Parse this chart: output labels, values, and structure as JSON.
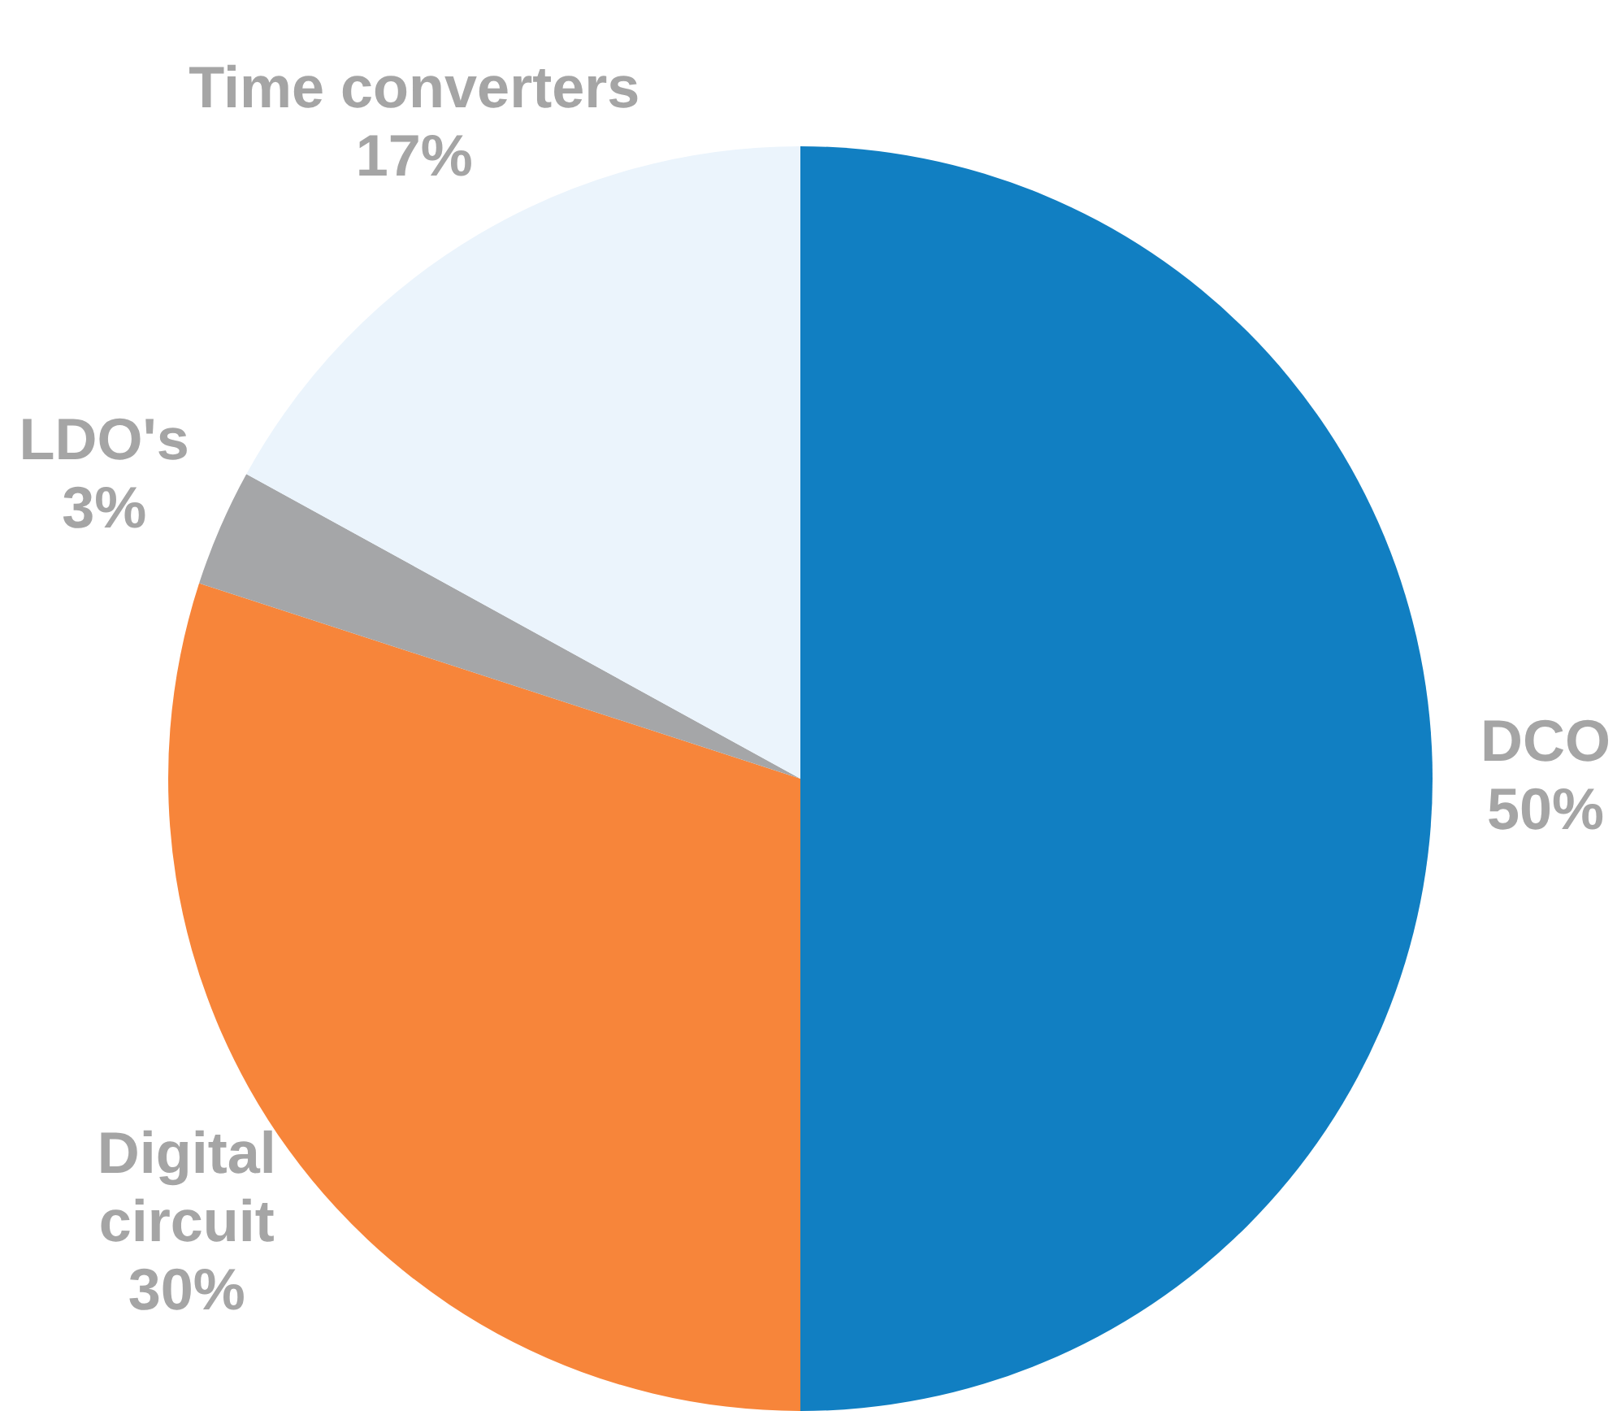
{
  "chart_data": {
    "type": "pie",
    "categories": [
      "DCO",
      "Digital circuit",
      "LDO's",
      "Time converters"
    ],
    "values": [
      50,
      30,
      3,
      17
    ],
    "colors": [
      "#117fc2",
      "#f7853a",
      "#a5a6a8",
      "#ebf4fc"
    ],
    "value_labels": [
      "50%",
      "30%",
      "3%",
      "17%"
    ],
    "legend": false
  }
}
